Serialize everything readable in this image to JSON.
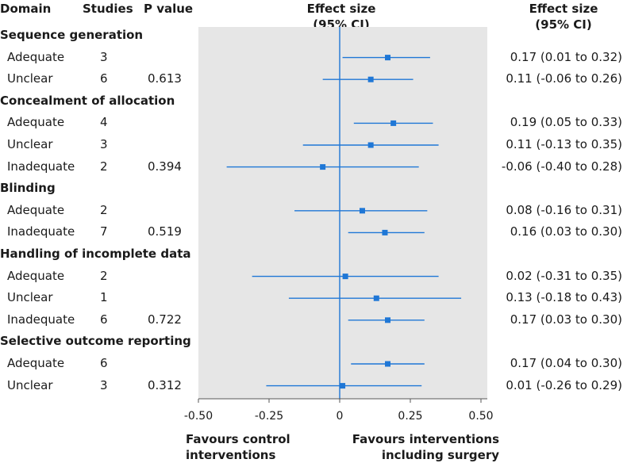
{
  "headers": {
    "domain": "Domain",
    "studies": "Studies",
    "pvalue": "P value",
    "effect_line1": "Effect size",
    "effect_line2": "(95% CI)",
    "effect_right_line1": "Effect size",
    "effect_right_line2": "(95% CI)"
  },
  "footer": {
    "left_line1": "Favours control",
    "left_line2": "interventions",
    "right_line1": "Favours interventions",
    "right_line2": "including surgery"
  },
  "colors": {
    "marker": "#1f77d6",
    "panel": "#e6e6e6",
    "zero_line": "#1f77d6"
  },
  "chart_data": {
    "type": "forest",
    "xlim": [
      -0.5,
      0.5
    ],
    "ticks": [
      -0.5,
      -0.25,
      0,
      0.25,
      0.5
    ],
    "tick_labels": [
      "-0.50",
      "-0.25",
      "0",
      "0.25",
      "0.50"
    ],
    "rows": [
      {
        "kind": "group",
        "label": "Sequence generation"
      },
      {
        "kind": "item",
        "label": "Adequate",
        "studies": "3",
        "p": "",
        "est": 0.17,
        "lo": 0.01,
        "hi": 0.32,
        "text": "0.17 (0.01 to 0.32)"
      },
      {
        "kind": "item",
        "label": "Unclear",
        "studies": "6",
        "p": "0.613",
        "est": 0.11,
        "lo": -0.06,
        "hi": 0.26,
        "text": "0.11 (-0.06 to 0.26)"
      },
      {
        "kind": "group",
        "label": "Concealment of allocation"
      },
      {
        "kind": "item",
        "label": "Adequate",
        "studies": "4",
        "p": "",
        "est": 0.19,
        "lo": 0.05,
        "hi": 0.33,
        "text": "0.19 (0.05 to 0.33)"
      },
      {
        "kind": "item",
        "label": "Unclear",
        "studies": "3",
        "p": "",
        "est": 0.11,
        "lo": -0.13,
        "hi": 0.35,
        "text": "0.11 (-0.13 to 0.35)"
      },
      {
        "kind": "item",
        "label": "Inadequate",
        "studies": "2",
        "p": "0.394",
        "est": -0.06,
        "lo": -0.4,
        "hi": 0.28,
        "text": "-0.06 (-0.40 to 0.28)"
      },
      {
        "kind": "group",
        "label": "Blinding"
      },
      {
        "kind": "item",
        "label": "Adequate",
        "studies": "2",
        "p": "",
        "est": 0.08,
        "lo": -0.16,
        "hi": 0.31,
        "text": "0.08 (-0.16 to 0.31)"
      },
      {
        "kind": "item",
        "label": "Inadequate",
        "studies": "7",
        "p": "0.519",
        "est": 0.16,
        "lo": 0.03,
        "hi": 0.3,
        "text": "0.16 (0.03 to 0.30)"
      },
      {
        "kind": "group",
        "label": "Handling of incomplete data"
      },
      {
        "kind": "item",
        "label": "Adequate",
        "studies": "2",
        "p": "",
        "est": 0.02,
        "lo": -0.31,
        "hi": 0.35,
        "text": "0.02 (-0.31 to 0.35)"
      },
      {
        "kind": "item",
        "label": "Unclear",
        "studies": "1",
        "p": "",
        "est": 0.13,
        "lo": -0.18,
        "hi": 0.43,
        "text": "0.13 (-0.18 to 0.43)"
      },
      {
        "kind": "item",
        "label": "Inadequate",
        "studies": "6",
        "p": "0.722",
        "est": 0.17,
        "lo": 0.03,
        "hi": 0.3,
        "text": "0.17 (0.03 to 0.30)"
      },
      {
        "kind": "group",
        "label": "Selective outcome reporting"
      },
      {
        "kind": "item",
        "label": "Adequate",
        "studies": "6",
        "p": "",
        "est": 0.17,
        "lo": 0.04,
        "hi": 0.3,
        "text": "0.17 (0.04 to 0.30)"
      },
      {
        "kind": "item",
        "label": "Unclear",
        "studies": "3",
        "p": "0.312",
        "est": 0.01,
        "lo": -0.26,
        "hi": 0.29,
        "text": "0.01 (-0.26 to 0.29)"
      }
    ]
  }
}
